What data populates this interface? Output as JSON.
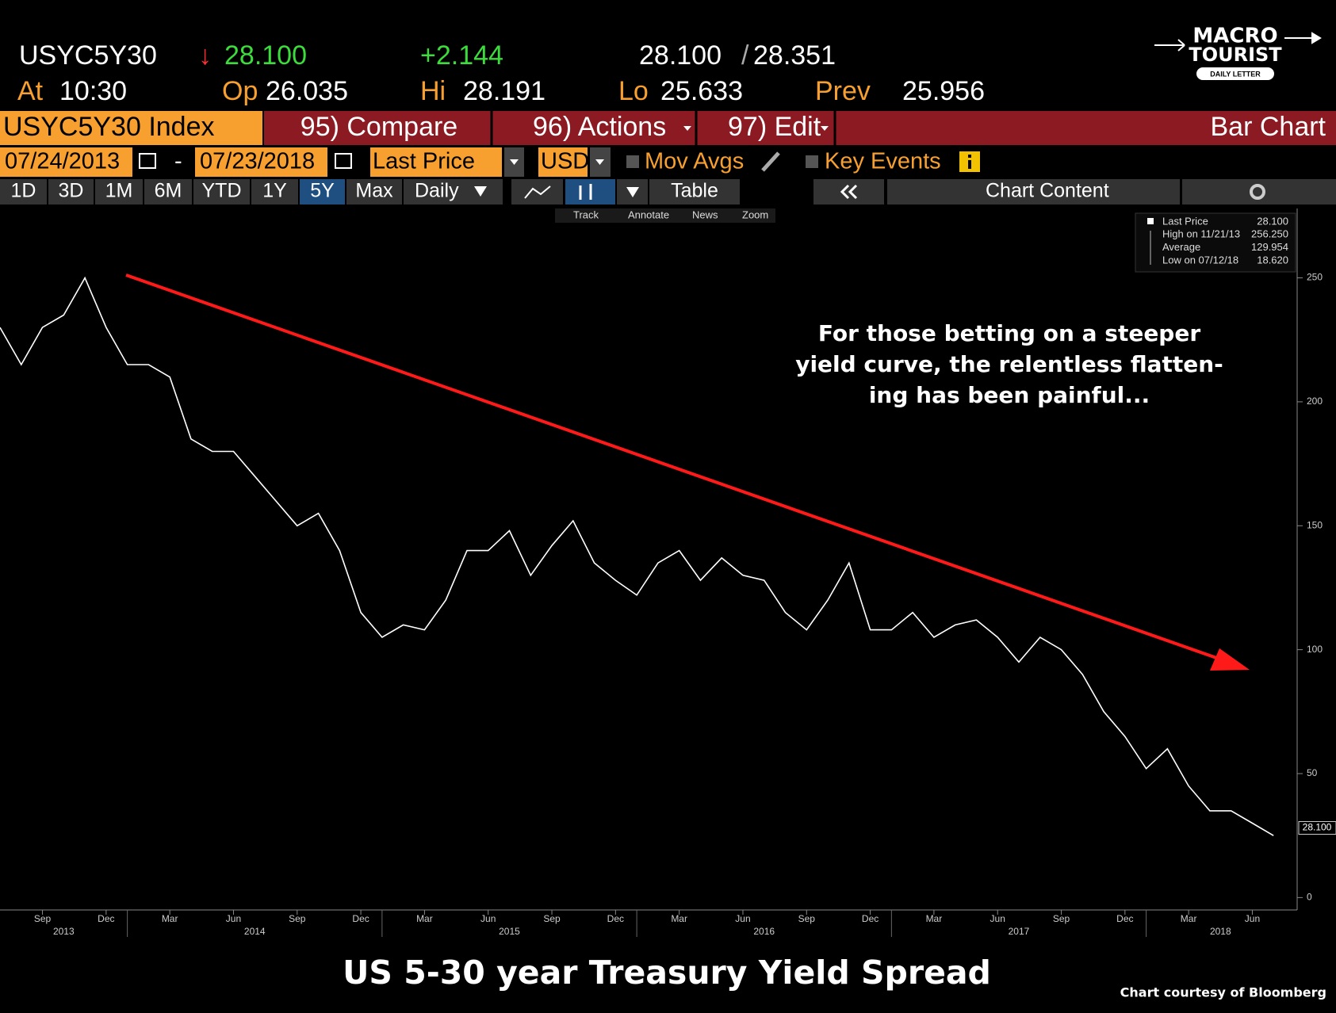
{
  "header": {
    "ticker": "USYC5Y30",
    "arrow": "↓",
    "last": "28.100",
    "change": "+2.144",
    "bid": "28.100",
    "sep": "/",
    "ask": "28.351",
    "row2": [
      [
        "At",
        "10:30"
      ],
      [
        "Op",
        "26.035"
      ],
      [
        "Hi",
        "28.191"
      ],
      [
        "Lo",
        "25.633"
      ],
      [
        "Prev",
        "25.956"
      ]
    ]
  },
  "logo": {
    "line1": "MACRO",
    "line2": "TOURIST",
    "line3": "DAILY LETTER"
  },
  "menu": {
    "security": "USYC5Y30 Index",
    "items": [
      "95) Compare",
      "96) Actions",
      "97) Edit"
    ],
    "mode": "Bar Chart"
  },
  "controls": {
    "start": "07/24/2013",
    "dash": "-",
    "end": "07/23/2018",
    "field": "Last Price",
    "currency": "USD",
    "mov_avgs": "Mov Avgs",
    "key_events": "Key Events"
  },
  "periods": [
    "1D",
    "3D",
    "1M",
    "6M",
    "YTD",
    "1Y",
    "5Y",
    "Max",
    "Daily"
  ],
  "active_period": 6,
  "table_button": "Table",
  "chart_content": "Chart Content",
  "tools": [
    "Track",
    "Annotate",
    "News",
    "Zoom"
  ],
  "legend_box": [
    {
      "label": "Last Price",
      "value": "28.100"
    },
    {
      "label": "High on 11/21/13",
      "value": "256.250"
    },
    {
      "label": "Average",
      "value": "129.954"
    },
    {
      "label": "Low on 07/12/18",
      "value": "18.620"
    }
  ],
  "chart_data": {
    "type": "line",
    "title": "US 5-30 year Treasury Yield Spread",
    "credit": "Chart courtesy of Bloomberg",
    "annotation": [
      "For those betting on a steeper",
      "yield curve, the relentless flatten-",
      "ing has been painful..."
    ],
    "x": [
      "2013-07",
      "2013-08",
      "2013-09",
      "2013-10",
      "2013-11",
      "2013-12",
      "2014-01",
      "2014-02",
      "2014-03",
      "2014-04",
      "2014-05",
      "2014-06",
      "2014-07",
      "2014-08",
      "2014-09",
      "2014-10",
      "2014-11",
      "2014-12",
      "2015-01",
      "2015-02",
      "2015-03",
      "2015-04",
      "2015-05",
      "2015-06",
      "2015-07",
      "2015-08",
      "2015-09",
      "2015-10",
      "2015-11",
      "2015-12",
      "2016-01",
      "2016-02",
      "2016-03",
      "2016-04",
      "2016-05",
      "2016-06",
      "2016-07",
      "2016-08",
      "2016-09",
      "2016-10",
      "2016-11",
      "2016-12",
      "2017-01",
      "2017-02",
      "2017-03",
      "2017-04",
      "2017-05",
      "2017-06",
      "2017-07",
      "2017-08",
      "2017-09",
      "2017-10",
      "2017-11",
      "2017-12",
      "2018-01",
      "2018-02",
      "2018-03",
      "2018-04",
      "2018-05",
      "2018-06",
      "2018-07"
    ],
    "series": [
      {
        "name": "Last Price",
        "color": "#ffffff",
        "values": [
          230,
          215,
          230,
          235,
          250,
          230,
          215,
          215,
          210,
          185,
          180,
          180,
          170,
          160,
          150,
          155,
          140,
          115,
          105,
          110,
          108,
          120,
          140,
          140,
          148,
          130,
          142,
          152,
          135,
          128,
          122,
          135,
          140,
          128,
          137,
          130,
          128,
          115,
          108,
          120,
          135,
          108,
          108,
          115,
          105,
          110,
          112,
          105,
          95,
          105,
          100,
          90,
          75,
          65,
          52,
          60,
          45,
          35,
          35,
          30,
          25
        ]
      }
    ],
    "last_label": {
      "value": 28.1,
      "label": "28.100"
    },
    "xlim": [
      "2013-07",
      "2018-08"
    ],
    "xticks": [
      {
        "value": "2013-09",
        "label": "Sep"
      },
      {
        "value": "2013-12",
        "label": "Dec"
      },
      {
        "value": "2014-03",
        "label": "Mar"
      },
      {
        "value": "2014-06",
        "label": "Jun"
      },
      {
        "value": "2014-09",
        "label": "Sep"
      },
      {
        "value": "2014-12",
        "label": "Dec"
      },
      {
        "value": "2015-03",
        "label": "Mar"
      },
      {
        "value": "2015-06",
        "label": "Jun"
      },
      {
        "value": "2015-09",
        "label": "Sep"
      },
      {
        "value": "2015-12",
        "label": "Dec"
      },
      {
        "value": "2016-03",
        "label": "Mar"
      },
      {
        "value": "2016-06",
        "label": "Jun"
      },
      {
        "value": "2016-09",
        "label": "Sep"
      },
      {
        "value": "2016-12",
        "label": "Dec"
      },
      {
        "value": "2017-03",
        "label": "Mar"
      },
      {
        "value": "2017-06",
        "label": "Jun"
      },
      {
        "value": "2017-09",
        "label": "Sep"
      },
      {
        "value": "2017-12",
        "label": "Dec"
      },
      {
        "value": "2018-03",
        "label": "Mar"
      },
      {
        "value": "2018-06",
        "label": "Jun"
      }
    ],
    "year_labels": [
      2013,
      2014,
      2015,
      2016,
      2017,
      2018
    ],
    "ylim": [
      -5,
      278
    ],
    "yticks": [
      0,
      50,
      100,
      150,
      200,
      250
    ],
    "trend_color": "#ff1a1a"
  }
}
